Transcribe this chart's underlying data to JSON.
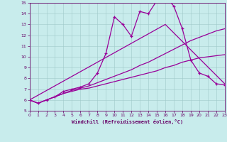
{
  "xlabel": "Windchill (Refroidissement éolien,°C)",
  "bg_color": "#c8ecec",
  "line_color": "#990099",
  "xlim": [
    0,
    23
  ],
  "ylim": [
    5,
    15
  ],
  "line1_x": [
    0,
    1,
    2,
    3,
    4,
    5,
    6,
    7,
    8,
    9,
    10,
    11,
    12,
    13,
    14,
    15,
    16,
    17,
    18,
    19,
    20,
    21,
    22,
    23
  ],
  "line1_y": [
    6.0,
    5.7,
    6.0,
    6.3,
    6.6,
    6.8,
    7.0,
    7.1,
    7.3,
    7.5,
    7.7,
    7.9,
    8.1,
    8.3,
    8.5,
    8.7,
    9.0,
    9.2,
    9.5,
    9.7,
    9.9,
    10.0,
    10.1,
    10.2
  ],
  "line2_x": [
    0,
    1,
    2,
    3,
    4,
    5,
    6,
    7,
    8,
    9,
    10,
    11,
    12,
    13,
    14,
    15,
    16,
    17,
    18,
    19,
    20,
    21,
    22,
    23
  ],
  "line2_y": [
    6.0,
    5.7,
    6.0,
    6.3,
    6.6,
    6.9,
    7.1,
    7.3,
    7.6,
    7.9,
    8.2,
    8.5,
    8.8,
    9.2,
    9.5,
    9.9,
    10.3,
    10.7,
    11.1,
    11.5,
    11.8,
    12.1,
    12.4,
    12.6
  ],
  "line3_x": [
    0,
    1,
    2,
    3,
    4,
    5,
    6,
    7,
    8,
    9,
    10,
    11,
    12,
    13,
    14,
    15,
    16,
    17,
    18,
    19,
    20,
    21,
    22,
    23
  ],
  "line3_y": [
    6.0,
    5.7,
    6.0,
    6.3,
    6.8,
    7.0,
    7.2,
    7.5,
    8.5,
    10.3,
    13.7,
    13.0,
    11.9,
    14.2,
    14.0,
    15.2,
    15.6,
    14.7,
    12.6,
    9.7,
    8.5,
    8.2,
    7.5,
    7.4
  ],
  "line4_x": [
    0,
    16,
    23
  ],
  "line4_y": [
    6.0,
    13.0,
    7.5
  ]
}
